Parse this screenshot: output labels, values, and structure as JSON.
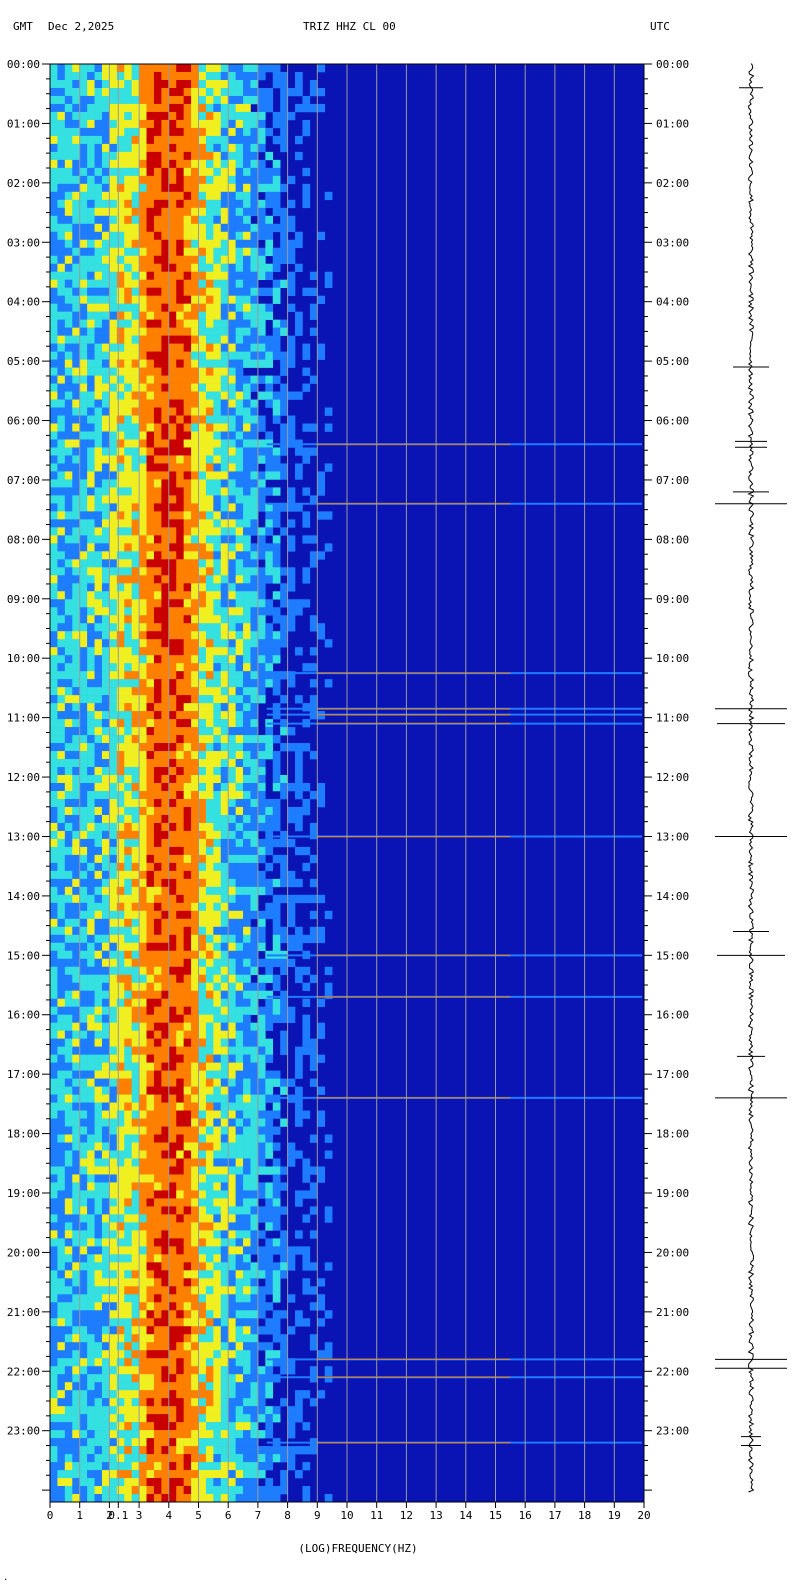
{
  "header": {
    "left_label": "GMT",
    "date": "Dec 2,2025",
    "station": "TRIZ HHZ CL 00",
    "right_label": "UTC"
  },
  "chart_data": {
    "type": "heatmap",
    "title": "TRIZ HHZ CL 00",
    "xlabel": "(LOG)FREQUENCY(HZ)",
    "x_ticks": [
      "0",
      "1",
      "2",
      "0.1",
      "3",
      "4",
      "5",
      "6",
      "7",
      "8",
      "9",
      "10",
      "11",
      "12",
      "13",
      "14",
      "15",
      "16",
      "17",
      "18",
      "19",
      "20"
    ],
    "x_tick_values": [
      0,
      1,
      2,
      2.3,
      3,
      4,
      5,
      6,
      7,
      8,
      9,
      10,
      11,
      12,
      13,
      14,
      15,
      16,
      17,
      18,
      19,
      20
    ],
    "xlim": [
      0,
      20
    ],
    "y_ticks_left": [
      "00:00",
      "01:00",
      "02:00",
      "03:00",
      "04:00",
      "05:00",
      "06:00",
      "07:00",
      "08:00",
      "09:00",
      "10:00",
      "11:00",
      "12:00",
      "13:00",
      "14:00",
      "15:00",
      "16:00",
      "17:00",
      "18:00",
      "19:00",
      "20:00",
      "21:00",
      "22:00",
      "23:00"
    ],
    "y_ticks_right": [
      "00:00",
      "01:00",
      "02:00",
      "03:00",
      "04:00",
      "05:00",
      "06:00",
      "07:00",
      "08:00",
      "09:00",
      "10:00",
      "11:00",
      "12:00",
      "13:00",
      "14:00",
      "15:00",
      "16:00",
      "17:00",
      "18:00",
      "19:00",
      "20:00",
      "21:00",
      "22:00",
      "23:00"
    ],
    "ylim_hours": [
      0,
      25
    ],
    "colors": {
      "low": "#0a14b4",
      "mid_low": "#1e7cff",
      "mid": "#34e0e0",
      "mid_high": "#f0f020",
      "high": "#ff8000",
      "max": "#c80000",
      "gridline": "#9a9a9a"
    },
    "event_lines_hours": [
      6.4,
      7.4,
      10.25,
      10.85,
      10.95,
      11.1,
      13.0,
      15.0,
      15.7,
      17.4,
      21.8,
      22.1,
      23.2
    ],
    "seismogram_event_hours": [
      0.4,
      5.1,
      6.35,
      6.45,
      7.2,
      7.4,
      10.85,
      11.1,
      13.0,
      14.6,
      15.0,
      16.7,
      17.4,
      21.8,
      21.95,
      23.1,
      23.25
    ],
    "corner_mark": "."
  }
}
